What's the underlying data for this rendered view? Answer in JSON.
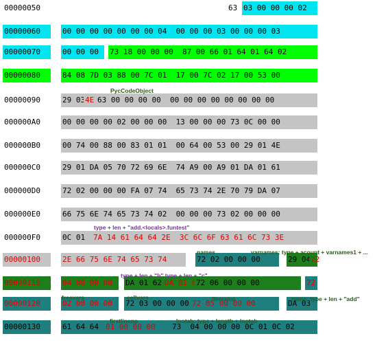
{
  "colors": {
    "cyan": "#00e5f0",
    "green": "#00ff00",
    "gray": "#c4c4c4",
    "teal": "#1f7f7f",
    "dark_green": "#1e7e1e",
    "red_text": "#e00000",
    "dark_text": "#000000",
    "purple_annotation": "#7a2fa0",
    "green_annotation": "#2e5a1a"
  },
  "rows": [
    {
      "addr": "00000050",
      "segments": [
        {
          "text": "63",
          "fg": "black",
          "bg": "none"
        },
        {
          "text": "03 00 00 00 02",
          "fg": "black",
          "bg": "cyan"
        }
      ]
    },
    {
      "addr": "00000060",
      "addr_bg": "cyan",
      "segments": [
        {
          "text": "00 00 00 00 00 00 00 04  00 00 00 03 00 00 00 03",
          "fg": "black",
          "bg": "cyan"
        }
      ]
    },
    {
      "addr": "00000070",
      "addr_bg": "cyan",
      "segments": [
        {
          "text": "00 00 00",
          "fg": "black",
          "bg": "cyan"
        },
        {
          "text": "73 18 00 00 00  87 00 66 01 64 01 64 02",
          "fg": "black",
          "bg": "green"
        }
      ]
    },
    {
      "addr": "00000080",
      "addr_bg": "green",
      "segments": [
        {
          "text": "84 08 7D 03 88 00 7C 01  17 00 7C 02 17 00 53 00",
          "fg": "black",
          "bg": "green"
        }
      ]
    },
    {
      "addr": "00000090",
      "segments": [
        {
          "text": "29 03",
          "fg": "black",
          "bg": "gray"
        },
        {
          "text": "4E",
          "fg": "red",
          "bg": "gray"
        },
        {
          "text": "63 00 00 00 00  00 00 00 00 00 00 00 00",
          "fg": "black",
          "bg": "gray"
        }
      ]
    },
    {
      "addr": "000000A0",
      "segments": [
        {
          "text": "00 00 00 00 02 00 00 00  13 00 00 00 73 0C 00 00",
          "fg": "black",
          "bg": "gray"
        }
      ]
    },
    {
      "addr": "000000B0",
      "segments": [
        {
          "text": "00 74 00 88 00 83 01 01  00 64 00 53 00 29 01 4E",
          "fg": "black",
          "bg": "gray"
        }
      ]
    },
    {
      "addr": "000000C0",
      "segments": [
        {
          "text": "29 01 DA 05 70 72 69 6E  74 A9 00 A9 01 DA 01 61",
          "fg": "black",
          "bg": "gray"
        }
      ]
    },
    {
      "addr": "000000D0",
      "segments": [
        {
          "text": "72 02 00 00 00 FA 07 74  65 73 74 2E 70 79 DA 07",
          "fg": "black",
          "bg": "gray"
        }
      ]
    },
    {
      "addr": "000000E0",
      "segments": [
        {
          "text": "66 75 6E 74 65 73 74 02  00 00 00 73 02 00 00 00",
          "fg": "black",
          "bg": "gray"
        }
      ]
    },
    {
      "addr": "000000F0",
      "segments": [
        {
          "text": "0C 01",
          "fg": "black",
          "bg": "gray"
        },
        {
          "text": "7A 14 61 64 64 2E  3C 6C 6F 63 61 6C 73 3E",
          "fg": "red",
          "bg": "gray"
        }
      ]
    },
    {
      "addr": "00000100",
      "addr_fg": "red",
      "addr_bg": "gray",
      "segments": [
        {
          "text": "2E 66 75 6E 74 65 73 74",
          "fg": "red",
          "bg": "gray"
        },
        {
          "text": "72 02 00 00 00",
          "fg": "black",
          "bg": "teal"
        },
        {
          "text": "29 04",
          "fg": "black",
          "bg": "dark_green"
        },
        {
          "text": "72",
          "fg": "red",
          "bg": "dark_green"
        }
      ]
    },
    {
      "addr": "00000110",
      "addr_fg": "red",
      "addr_bg": "dark_green",
      "segments": [
        {
          "text": "04 00 00 00",
          "fg": "red",
          "bg": "dark_green"
        },
        {
          "text": "DA 01 62",
          "fg": "black",
          "bg": "dark_green"
        },
        {
          "text": "DA 01 63",
          "fg": "red",
          "bg": "dark_green"
        },
        {
          "text": "72 06 00 00 00",
          "fg": "black",
          "bg": "dark_green"
        },
        {
          "text": "72",
          "fg": "red",
          "bg": "teal"
        }
      ]
    },
    {
      "addr": "00000120",
      "addr_fg": "red",
      "addr_bg": "teal",
      "segments": [
        {
          "text": "02 00 00 00",
          "fg": "red",
          "bg": "teal"
        },
        {
          "text": "72 03 00 00 00",
          "fg": "black",
          "bg": "teal"
        },
        {
          "text": "72 05 00 00 00",
          "fg": "red",
          "bg": "teal"
        },
        {
          "text": "DA 03",
          "fg": "black",
          "bg": "teal"
        }
      ]
    },
    {
      "addr": "00000130",
      "addr_bg": "teal",
      "segments": [
        {
          "text": "61 64 64",
          "fg": "black",
          "bg": "teal"
        },
        {
          "text": "01 00 00 00",
          "fg": "red",
          "bg": "teal"
        },
        {
          "text": "73  04 00 00 00 0C 01 0C 02",
          "fg": "black",
          "bg": "teal"
        }
      ]
    }
  ],
  "annotations": [
    {
      "text": "PycCodeObject",
      "color": "green"
    },
    {
      "text": "type  + len + \"add.<locals>.funtest\"",
      "color": "purple"
    },
    {
      "text": "names",
      "color": "green"
    },
    {
      "text": "varnames: type + acount + varnames1 + ...",
      "color": "green"
    },
    {
      "text": "type  + len + \"b\" type  + len + \"c\"",
      "color": "purple"
    },
    {
      "text": "freevars",
      "color": "green"
    },
    {
      "text": "cellvars",
      "color": "green"
    },
    {
      "text": "filename",
      "color": "green"
    },
    {
      "text": "name: type + len + \"add\"",
      "color": "green"
    },
    {
      "text": "firstlineno",
      "color": "green"
    },
    {
      "text": "lnotab: type + length + lnotab",
      "color": "green"
    }
  ]
}
